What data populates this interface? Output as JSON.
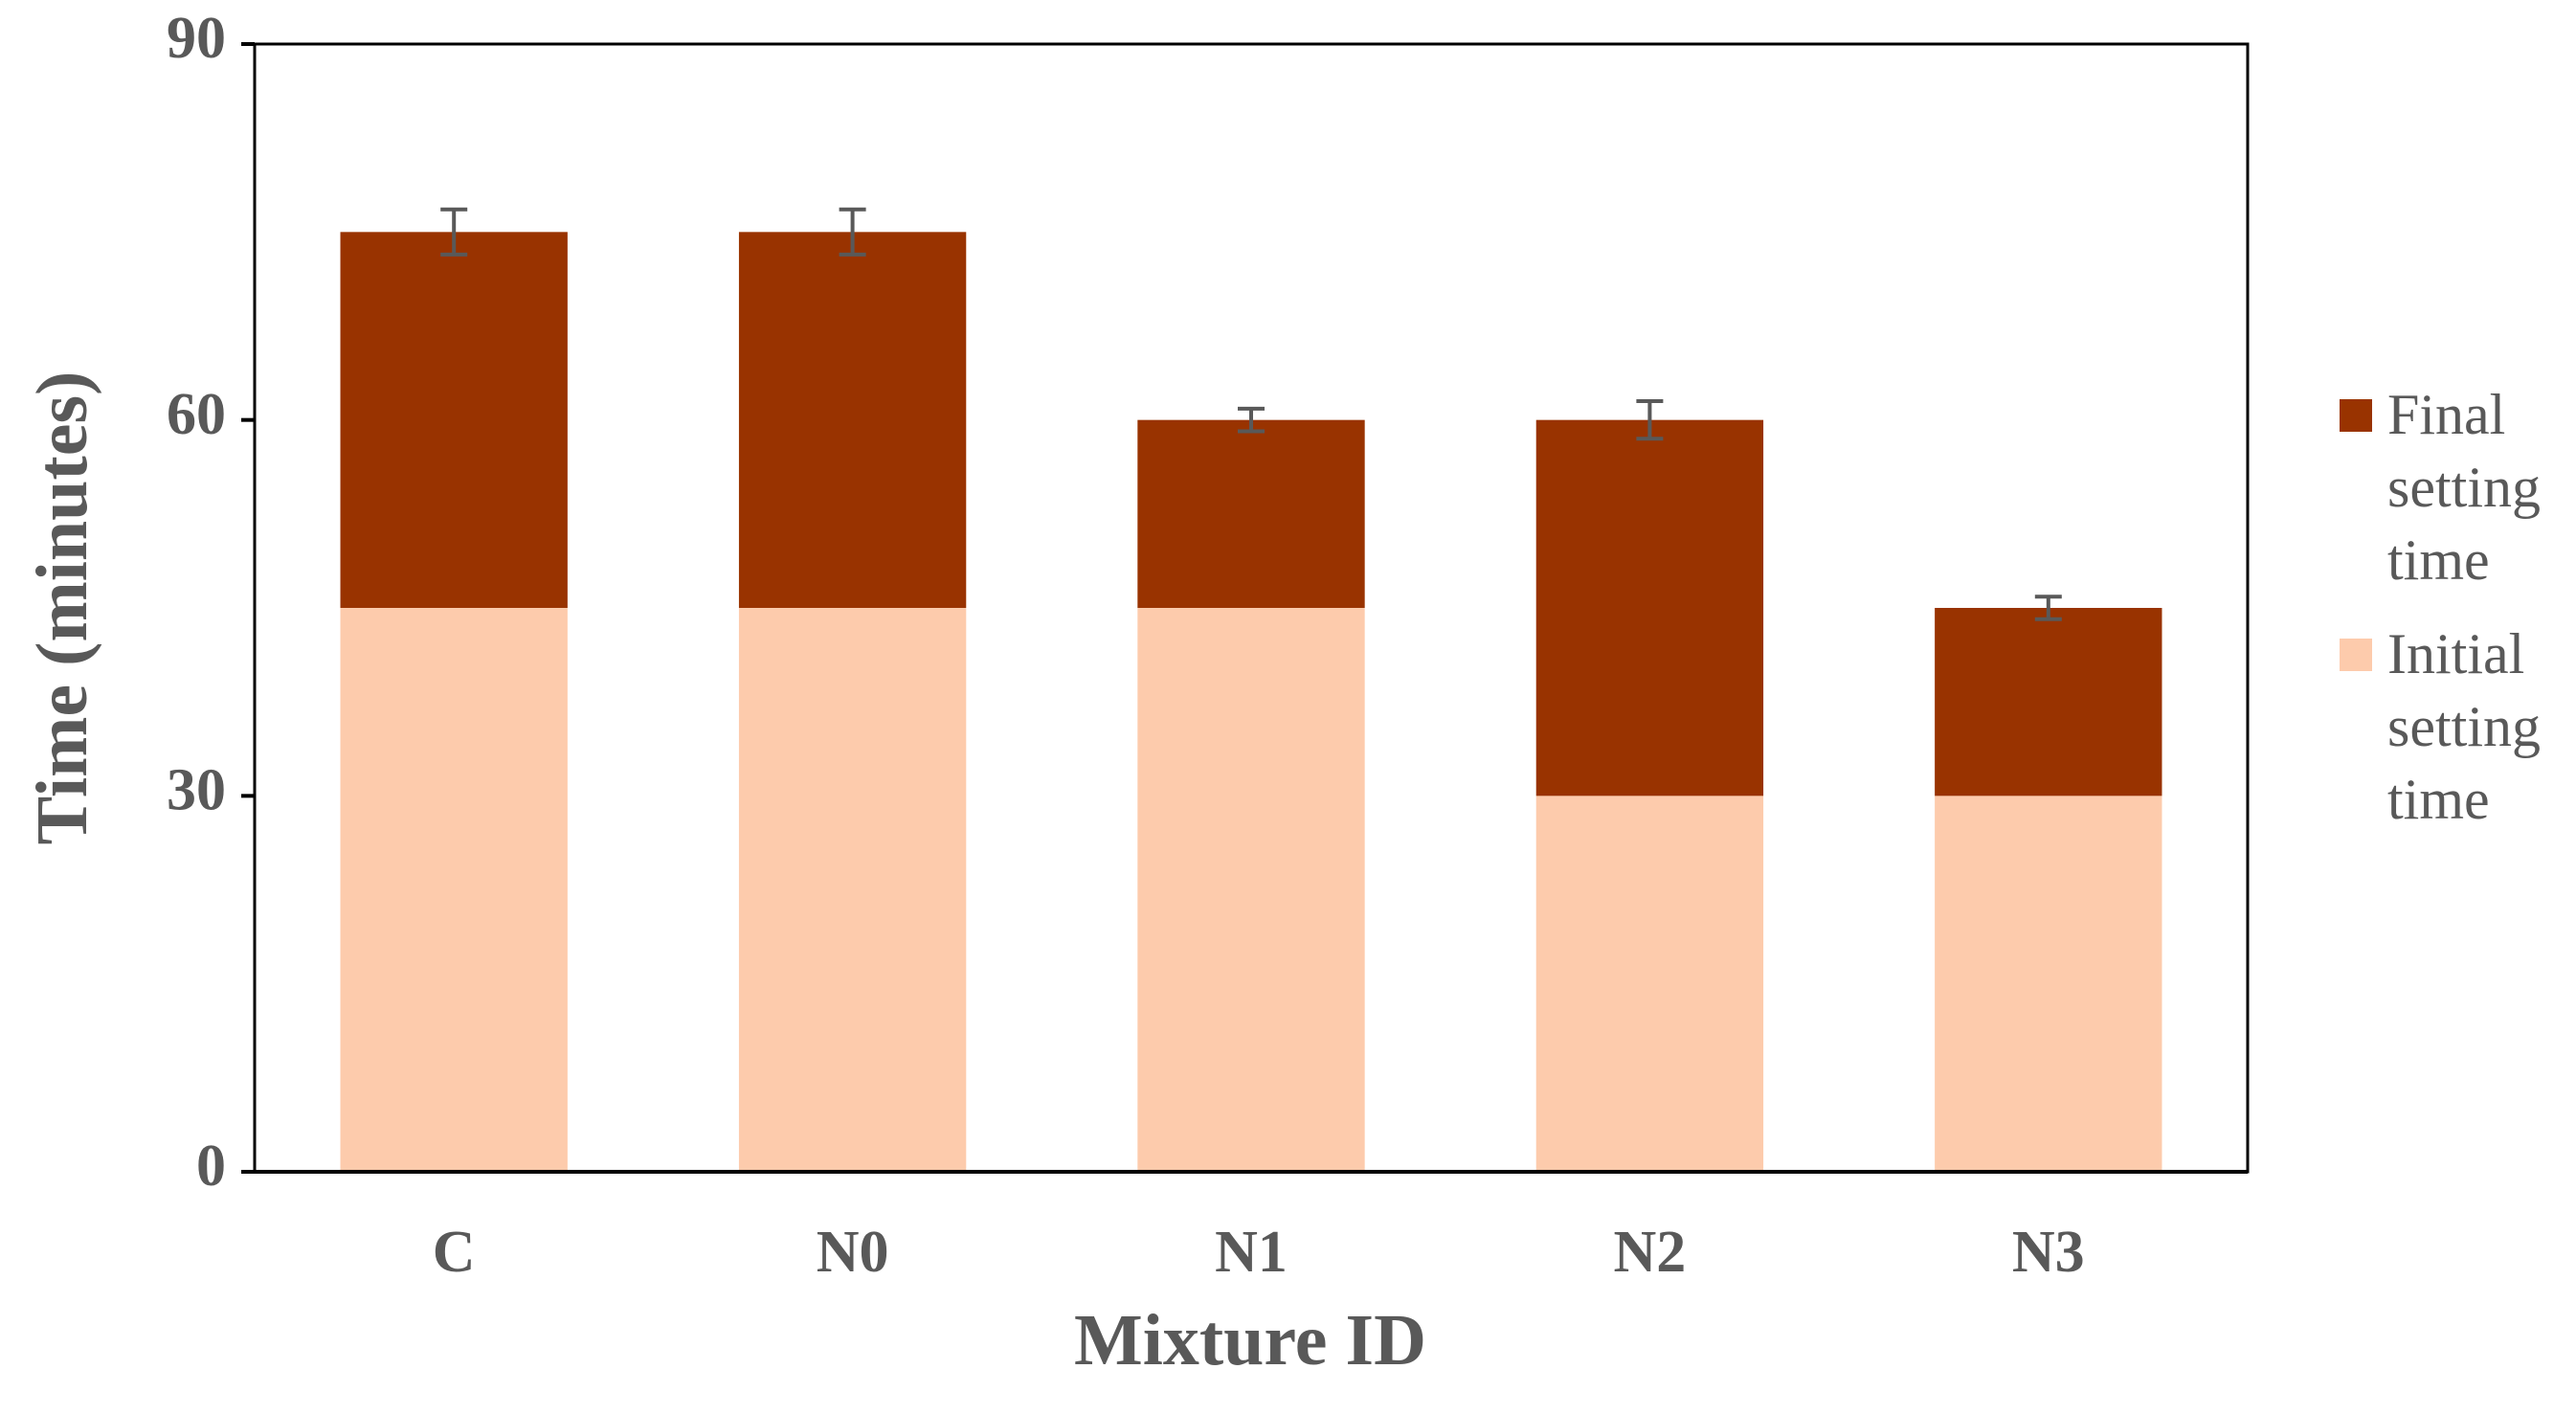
{
  "chart_data": {
    "type": "bar",
    "stacked": true,
    "x_label": "Mixture ID",
    "y_label": "Time (minutes)",
    "categories": [
      "C",
      "N0",
      "N1",
      "N2",
      "N3"
    ],
    "series": [
      {
        "name": "Initial setting time",
        "color": "#fdcbac",
        "values": [
          45,
          45,
          45,
          30,
          30
        ]
      },
      {
        "name": "Final setting time",
        "color": "#993300",
        "values": [
          30,
          30,
          15,
          30,
          15
        ],
        "errors": [
          1.8,
          1.8,
          0.9,
          1.5,
          0.9
        ]
      }
    ],
    "ylim": [
      0,
      90
    ],
    "yticks": [
      0,
      30,
      60,
      90
    ],
    "grid": false
  }
}
